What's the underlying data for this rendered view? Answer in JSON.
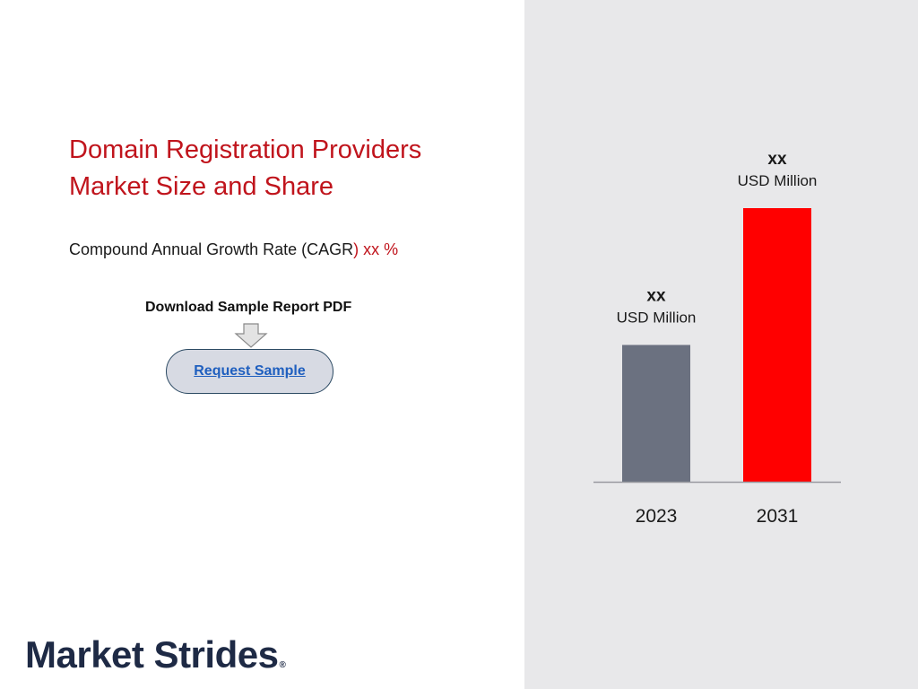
{
  "title_lines": [
    "Domain Registration Providers",
    "Market Size and Share"
  ],
  "cagr": {
    "label": "Compound Annual Growth Rate (CAGR",
    "value": ") xx %"
  },
  "download": {
    "label": "Download Sample Report PDF",
    "button_label": "Request Sample"
  },
  "logo": {
    "text": "Market Strides",
    "mark": "®"
  },
  "colors": {
    "accent_red": "#c0141c",
    "bar_2023": "#6b7180",
    "bar_2031": "#ff0000",
    "panel_grey": "#e8e8ea"
  },
  "chart_data": {
    "type": "bar",
    "categories": [
      "2023",
      "2031"
    ],
    "values": [
      1.0,
      2.0
    ],
    "value_labels": [
      "xx",
      "xx"
    ],
    "unit_labels": [
      "USD Million",
      "USD Million"
    ],
    "title": "",
    "xlabel": "",
    "ylabel": "",
    "grid": false
  }
}
